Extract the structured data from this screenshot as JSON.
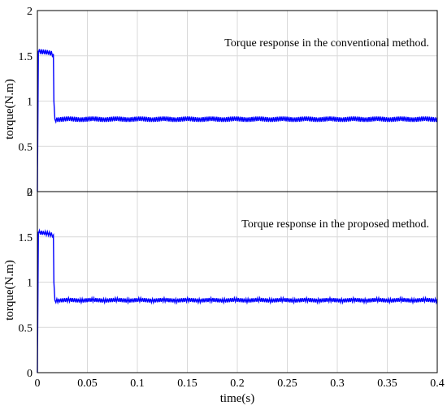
{
  "chart_data": [
    {
      "type": "line",
      "annotation": "Torque response in the conventional method.",
      "ylabel": "torque(N.m)",
      "xlabel": "",
      "xlim": [
        0,
        0.4
      ],
      "ylim": [
        0,
        2
      ],
      "yticks": [
        "0",
        "0.5",
        "1",
        "1.5",
        "2"
      ],
      "xticks": [],
      "grid": true,
      "series": [
        {
          "color": "#0000ff",
          "x": [
            0,
            0.001,
            0.002,
            0.016,
            0.0165,
            0.0175,
            0.4
          ],
          "y": [
            0,
            1.55,
            1.55,
            1.52,
            1.0,
            0.8,
            0.8
          ],
          "ripple": 0.03
        }
      ]
    },
    {
      "type": "line",
      "annotation": "Torque response in the proposed method.",
      "ylabel": "torque(N.m)",
      "xlabel": "time(s)",
      "xlim": [
        0,
        0.4
      ],
      "ylim": [
        0,
        2
      ],
      "yticks": [
        "0",
        "0.5",
        "1",
        "1.5",
        "2"
      ],
      "xticks": [
        "0",
        "0.05",
        "0.1",
        "0.15",
        "0.2",
        "0.25",
        "0.3",
        "0.35",
        "0.4"
      ],
      "grid": true,
      "series": [
        {
          "color": "#0000ff",
          "x": [
            0,
            0.001,
            0.002,
            0.016,
            0.0165,
            0.0175,
            0.4
          ],
          "y": [
            0,
            1.55,
            1.55,
            1.52,
            1.0,
            0.8,
            0.8
          ],
          "ripple": 0.025
        }
      ]
    }
  ]
}
